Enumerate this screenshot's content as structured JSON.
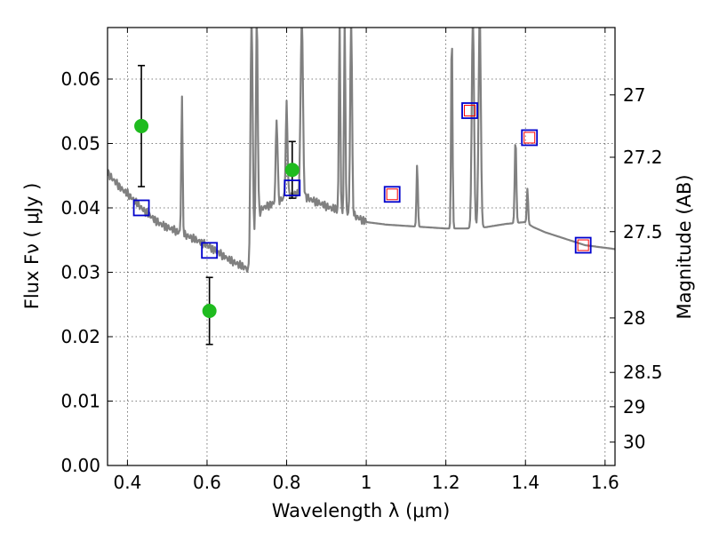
{
  "chart_data": {
    "type": "scatter",
    "title": "",
    "xlabel": "Wavelength  λ (μm)",
    "ylabel": "Flux  Fν  ( μJy )",
    "y2label": "Magnitude (AB)",
    "xlim": [
      0.35,
      1.625
    ],
    "ylim": [
      0.0,
      0.068
    ],
    "grid": true,
    "x_ticks": [
      0.4,
      0.6,
      0.8,
      1.0,
      1.2,
      1.4,
      1.6
    ],
    "x_tick_labels": [
      "0.4",
      "0.6",
      "0.8",
      "1",
      "1.2",
      "1.4",
      "1.6"
    ],
    "y_ticks": [
      0.0,
      0.01,
      0.02,
      0.03,
      0.04,
      0.05,
      0.06
    ],
    "y_tick_labels": [
      "0.00",
      "0.01",
      "0.02",
      "0.03",
      "0.04",
      "0.05",
      "0.06"
    ],
    "y2_ticks": [
      {
        "mag": 27,
        "label": "27"
      },
      {
        "mag": 27.2,
        "label": "27.2"
      },
      {
        "mag": 27.5,
        "label": "27.5"
      },
      {
        "mag": 28,
        "label": "28"
      },
      {
        "mag": 28.5,
        "label": "28.5"
      },
      {
        "mag": 29,
        "label": "29"
      },
      {
        "mag": 30,
        "label": "30"
      }
    ],
    "observed_points": [
      {
        "x": 0.435,
        "y": 0.0527,
        "y_low": 0.0433,
        "y_high": 0.0621
      },
      {
        "x": 0.606,
        "y": 0.024,
        "y_low": 0.0188,
        "y_high": 0.0292
      },
      {
        "x": 0.814,
        "y": 0.0459,
        "y_low": 0.0415,
        "y_high": 0.0503
      }
    ],
    "model_photometry": [
      {
        "x": 0.435,
        "y": 0.04
      },
      {
        "x": 0.606,
        "y": 0.0334
      },
      {
        "x": 0.814,
        "y": 0.0431
      },
      {
        "x": 1.065,
        "y": 0.0421
      },
      {
        "x": 1.26,
        "y": 0.0551
      },
      {
        "x": 1.41,
        "y": 0.0509
      },
      {
        "x": 1.545,
        "y": 0.0342
      }
    ],
    "model_bands_red": [
      {
        "x": 1.065,
        "y": 0.0421
      },
      {
        "x": 1.26,
        "y": 0.0551
      },
      {
        "x": 1.41,
        "y": 0.0509
      },
      {
        "x": 1.545,
        "y": 0.0342
      }
    ],
    "spectrum_continuum": [
      [
        0.35,
        0.0455
      ],
      [
        0.36,
        0.0447
      ],
      [
        0.37,
        0.044
      ],
      [
        0.38,
        0.0433
      ],
      [
        0.39,
        0.0427
      ],
      [
        0.4,
        0.0422
      ],
      [
        0.42,
        0.041
      ],
      [
        0.44,
        0.0397
      ],
      [
        0.46,
        0.0386
      ],
      [
        0.48,
        0.0376
      ],
      [
        0.5,
        0.037
      ],
      [
        0.53,
        0.0362
      ],
      [
        0.56,
        0.0354
      ],
      [
        0.58,
        0.0348
      ],
      [
        0.6,
        0.0342
      ],
      [
        0.62,
        0.0334
      ],
      [
        0.64,
        0.0326
      ],
      [
        0.66,
        0.0318
      ],
      [
        0.68,
        0.0312
      ],
      [
        0.7,
        0.0306
      ],
      [
        0.705,
        0.0296
      ],
      [
        0.71,
        0.029
      ],
      [
        0.715,
        0.03
      ],
      [
        0.72,
        0.035
      ],
      [
        0.725,
        0.0385
      ],
      [
        0.74,
        0.04
      ],
      [
        0.76,
        0.0405
      ],
      [
        0.78,
        0.041
      ],
      [
        0.8,
        0.0418
      ],
      [
        0.82,
        0.0422
      ],
      [
        0.85,
        0.0416
      ],
      [
        0.88,
        0.0408
      ],
      [
        0.91,
        0.04
      ],
      [
        0.94,
        0.0396
      ],
      [
        0.97,
        0.0388
      ],
      [
        1.0,
        0.0378
      ],
      [
        1.05,
        0.0374
      ],
      [
        1.1,
        0.0372
      ],
      [
        1.15,
        0.037
      ],
      [
        1.2,
        0.0368
      ],
      [
        1.22,
        0.0368
      ],
      [
        1.25,
        0.0368
      ],
      [
        1.3,
        0.037
      ],
      [
        1.35,
        0.0375
      ],
      [
        1.4,
        0.0378
      ],
      [
        1.42,
        0.037
      ],
      [
        1.45,
        0.0362
      ],
      [
        1.5,
        0.0352
      ],
      [
        1.55,
        0.0342
      ],
      [
        1.6,
        0.0338
      ],
      [
        1.625,
        0.0336
      ]
    ],
    "spectrum_lines": [
      {
        "x": 0.537,
        "peak": 0.0573,
        "width": 0.006
      },
      {
        "x": 0.712,
        "peak": 0.07,
        "width": 0.01
      },
      {
        "x": 0.725,
        "peak": 0.07,
        "width": 0.008
      },
      {
        "x": 0.775,
        "peak": 0.054,
        "width": 0.008
      },
      {
        "x": 0.8,
        "peak": 0.056,
        "width": 0.008
      },
      {
        "x": 0.838,
        "peak": 0.07,
        "width": 0.01
      },
      {
        "x": 0.933,
        "peak": 0.07,
        "width": 0.006
      },
      {
        "x": 0.946,
        "peak": 0.07,
        "width": 0.006
      },
      {
        "x": 0.962,
        "peak": 0.07,
        "width": 0.008
      },
      {
        "x": 1.128,
        "peak": 0.0468,
        "width": 0.006
      },
      {
        "x": 1.215,
        "peak": 0.068,
        "width": 0.006
      },
      {
        "x": 1.268,
        "peak": 0.07,
        "width": 0.01
      },
      {
        "x": 1.285,
        "peak": 0.07,
        "width": 0.01
      },
      {
        "x": 1.375,
        "peak": 0.0508,
        "width": 0.007
      },
      {
        "x": 1.405,
        "peak": 0.043,
        "width": 0.006
      }
    ],
    "colors": {
      "spectrum": "#808080",
      "observed": "#1fbb1f",
      "errorbar": "#000000",
      "model_square": "#0000cc",
      "model_inner": "#ff0000",
      "grid": "#555555"
    }
  }
}
